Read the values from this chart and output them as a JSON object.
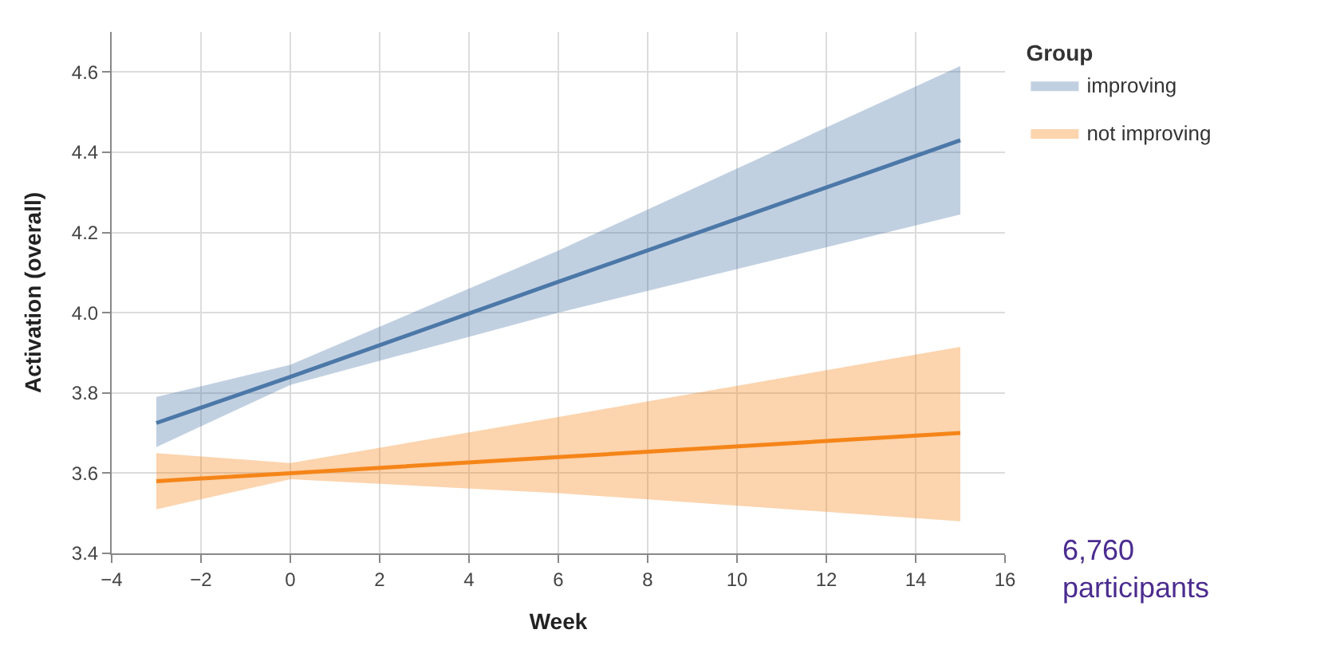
{
  "chart_data": {
    "type": "line",
    "xlabel": "Week",
    "ylabel": "Activation (overall)",
    "legend_title": "Group",
    "series": [
      {
        "name": "improving",
        "color": "#4c78a8",
        "x": [
          -3,
          0,
          6,
          15
        ],
        "values": [
          3.725,
          3.84,
          4.077,
          4.43
        ],
        "lower": [
          3.665,
          3.82,
          4.0,
          4.245
        ],
        "upper": [
          3.79,
          3.87,
          4.155,
          4.615
        ]
      },
      {
        "name": "not improving",
        "color": "#f58518",
        "x": [
          -3,
          0,
          6,
          15
        ],
        "values": [
          3.58,
          3.6,
          3.64,
          3.7
        ],
        "lower": [
          3.51,
          3.585,
          3.55,
          3.48
        ],
        "upper": [
          3.65,
          3.625,
          3.74,
          3.915
        ]
      }
    ],
    "xlim": [
      -4,
      16
    ],
    "xticks": [
      {
        "value": -4,
        "label": "−4"
      },
      {
        "value": -2,
        "label": "−2"
      },
      0,
      2,
      4,
      6,
      8,
      10,
      12,
      14,
      16
    ],
    "ylim": [
      3.4,
      4.7
    ],
    "yticks": [
      {
        "value": 3.4,
        "label": "3.4"
      },
      {
        "value": 3.6,
        "label": "3.6"
      },
      {
        "value": 3.8,
        "label": "3.8"
      },
      {
        "value": 4.0,
        "label": "4.0"
      },
      {
        "value": 4.2,
        "label": "4.2"
      },
      {
        "value": 4.4,
        "label": "4.4"
      },
      {
        "value": 4.6,
        "label": "4.6"
      }
    ],
    "grid": true,
    "legend": "top right",
    "line_style": "solid",
    "marker": "none",
    "annotations": [
      "6,760 participants"
    ]
  }
}
